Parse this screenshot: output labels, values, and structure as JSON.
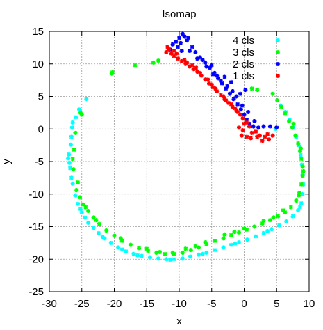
{
  "chart_data": {
    "type": "scatter",
    "title": "Isomap",
    "xlabel": "x",
    "ylabel": "y",
    "xlim": [
      -30,
      10
    ],
    "ylim": [
      -25,
      15
    ],
    "xticks": [
      -30,
      -25,
      -20,
      -15,
      -10,
      -5,
      0,
      5,
      10
    ],
    "yticks": [
      -25,
      -20,
      -15,
      -10,
      -5,
      0,
      5,
      10,
      15
    ],
    "grid": true,
    "legend_position": "top-right",
    "series": [
      {
        "name": "4 cls",
        "color": "#00ffff",
        "points": [
          [
            -24.3,
            4.6
          ],
          [
            -25.4,
            3.0
          ],
          [
            -26.4,
            1.0
          ],
          [
            -26.5,
            0.2
          ],
          [
            -26.6,
            -1.2
          ],
          [
            -26.7,
            -2.4
          ],
          [
            -27.0,
            -3.9
          ],
          [
            -27.1,
            -4.5
          ],
          [
            -26.8,
            -6.0
          ],
          [
            -26.6,
            -7.5
          ],
          [
            -26.4,
            -8.4
          ],
          [
            -26.0,
            -10.2
          ],
          [
            -25.6,
            -11.5
          ],
          [
            -25.0,
            -12.8
          ],
          [
            -24.5,
            -13.6
          ],
          [
            -24.0,
            -14.4
          ],
          [
            -23.2,
            -15.2
          ],
          [
            -22.4,
            -16.0
          ],
          [
            -21.5,
            -16.8
          ],
          [
            -20.5,
            -17.5
          ],
          [
            -19.4,
            -18.2
          ],
          [
            -18.2,
            -18.8
          ],
          [
            -17.0,
            -19.2
          ],
          [
            -15.8,
            -19.5
          ],
          [
            -14.5,
            -19.7
          ],
          [
            -13.2,
            -19.9
          ],
          [
            -12.0,
            -20.0
          ],
          [
            -10.8,
            -20.0
          ],
          [
            -9.5,
            -19.9
          ],
          [
            -8.3,
            -19.6
          ],
          [
            -7.0,
            -19.3
          ],
          [
            -5.8,
            -19.0
          ],
          [
            -4.5,
            -18.6
          ],
          [
            -3.2,
            -18.2
          ],
          [
            -2.0,
            -17.8
          ],
          [
            -0.8,
            -17.4
          ],
          [
            0.5,
            -17.0
          ],
          [
            1.8,
            -16.5
          ],
          [
            3.0,
            -16.0
          ],
          [
            4.2,
            -15.4
          ],
          [
            5.4,
            -14.8
          ],
          [
            6.5,
            -14.2
          ],
          [
            7.5,
            -13.4
          ],
          [
            8.3,
            -12.5
          ],
          [
            8.8,
            -11.4
          ],
          [
            9.0,
            -10.0
          ],
          [
            9.1,
            -8.5
          ],
          [
            9.0,
            -7.0
          ],
          [
            8.9,
            -5.5
          ],
          [
            8.7,
            -4.0
          ],
          [
            8.4,
            -2.5
          ],
          [
            8.0,
            -1.2
          ],
          [
            7.5,
            0.2
          ],
          [
            7.0,
            1.4
          ],
          [
            6.4,
            2.6
          ],
          [
            5.6,
            3.6
          ],
          [
            -21.8,
            -16.6
          ],
          [
            -18.8,
            -18.5
          ],
          [
            -16.4,
            -19.4
          ],
          [
            -11.4,
            -20.1
          ],
          [
            -6.4,
            -19.2
          ],
          [
            -1.4,
            -17.6
          ],
          [
            3.6,
            -15.7
          ],
          [
            8.6,
            -12.0
          ],
          [
            -25.2,
            -12.3
          ],
          [
            -26.9,
            -5.2
          ],
          [
            -25.9,
            1.8
          ],
          [
            4.8,
            0.0
          ]
        ]
      },
      {
        "name": "3 cls",
        "color": "#00ff00",
        "points": [
          [
            -20.3,
            8.7
          ],
          [
            -20.4,
            8.5
          ],
          [
            -16.8,
            9.8
          ],
          [
            -14.0,
            10.2
          ],
          [
            -13.2,
            10.5
          ],
          [
            -25.0,
            2.2
          ],
          [
            -25.2,
            2.5
          ],
          [
            -26.0,
            -0.6
          ],
          [
            -26.2,
            -3.2
          ],
          [
            -26.3,
            -6.2
          ],
          [
            -25.8,
            -9.4
          ],
          [
            -25.3,
            -10.5
          ],
          [
            -24.8,
            -11.6
          ],
          [
            -24.0,
            -12.6
          ],
          [
            -23.2,
            -13.6
          ],
          [
            -22.3,
            -14.6
          ],
          [
            -21.2,
            -15.6
          ],
          [
            -20.0,
            -16.4
          ],
          [
            -18.8,
            -17.2
          ],
          [
            -17.5,
            -17.8
          ],
          [
            -16.2,
            -18.3
          ],
          [
            -14.8,
            -18.7
          ],
          [
            -13.5,
            -19.0
          ],
          [
            -12.2,
            -19.2
          ],
          [
            -10.8,
            -19.2
          ],
          [
            -9.5,
            -19.0
          ],
          [
            -8.2,
            -18.6
          ],
          [
            -7.0,
            -18.2
          ],
          [
            -5.8,
            -17.7
          ],
          [
            -4.5,
            -17.2
          ],
          [
            -3.2,
            -16.8
          ],
          [
            -2.0,
            -16.3
          ],
          [
            -0.8,
            -15.9
          ],
          [
            0.4,
            -15.5
          ],
          [
            1.6,
            -15.0
          ],
          [
            2.8,
            -14.5
          ],
          [
            4.0,
            -14.0
          ],
          [
            5.2,
            -13.4
          ],
          [
            6.3,
            -12.8
          ],
          [
            7.2,
            -12.0
          ],
          [
            8.0,
            -11.0
          ],
          [
            8.5,
            -9.8
          ],
          [
            8.8,
            -8.5
          ],
          [
            9.0,
            -7.2
          ],
          [
            9.0,
            -5.8
          ],
          [
            8.8,
            -4.6
          ],
          [
            8.6,
            -3.4
          ],
          [
            8.3,
            -2.2
          ],
          [
            7.9,
            -1.0
          ],
          [
            7.4,
            0.2
          ],
          [
            6.9,
            1.2
          ],
          [
            6.3,
            2.4
          ],
          [
            5.7,
            3.4
          ],
          [
            5.1,
            4.4
          ],
          [
            4.4,
            5.4
          ],
          [
            -11.0,
            -19.0
          ],
          [
            -9.0,
            -18.4
          ],
          [
            -6.0,
            -17.4
          ],
          [
            -3.0,
            -16.2
          ],
          [
            0.0,
            -15.3
          ],
          [
            3.0,
            -14.1
          ],
          [
            6.0,
            -12.5
          ],
          [
            8.4,
            -10.2
          ],
          [
            9.1,
            -6.5
          ],
          [
            8.7,
            -3.0
          ],
          [
            7.6,
            0.8
          ],
          [
            1.2,
            6.2
          ],
          [
            2.0,
            6.0
          ],
          [
            -22.8,
            -14.0
          ],
          [
            -19.0,
            -16.8
          ],
          [
            -15.0,
            -18.4
          ],
          [
            -13.0,
            -18.9
          ],
          [
            -7.5,
            -18.0
          ],
          [
            -1.5,
            -15.8
          ],
          [
            4.5,
            -13.6
          ],
          [
            -26.4,
            -4.6
          ],
          [
            -25.6,
            -8.2
          ],
          [
            -24.4,
            -12.0
          ]
        ]
      },
      {
        "name": "2 cls",
        "color": "#0000ff",
        "points": [
          [
            -9.5,
            14.6
          ],
          [
            -9.2,
            14.2
          ],
          [
            -10.0,
            14.0
          ],
          [
            -10.5,
            13.4
          ],
          [
            -11.0,
            13.0
          ],
          [
            -8.8,
            13.6
          ],
          [
            -8.0,
            12.6
          ],
          [
            -7.5,
            11.8
          ],
          [
            -6.8,
            11.0
          ],
          [
            -6.0,
            10.2
          ],
          [
            -5.3,
            9.4
          ],
          [
            -4.6,
            8.6
          ],
          [
            -4.0,
            7.8
          ],
          [
            -3.4,
            7.0
          ],
          [
            -2.8,
            6.2
          ],
          [
            -2.2,
            5.4
          ],
          [
            -1.6,
            4.6
          ],
          [
            -1.0,
            3.8
          ],
          [
            -0.5,
            3.0
          ],
          [
            0.0,
            2.2
          ],
          [
            0.4,
            1.4
          ],
          [
            0.8,
            0.8
          ],
          [
            1.4,
            0.4
          ],
          [
            2.2,
            0.2
          ],
          [
            3.0,
            0.4
          ],
          [
            4.0,
            0.4
          ],
          [
            5.0,
            0.2
          ],
          [
            -10.2,
            12.6
          ],
          [
            -9.6,
            12.0
          ],
          [
            -8.4,
            12.0
          ],
          [
            -7.2,
            10.8
          ],
          [
            -5.8,
            9.6
          ],
          [
            -4.8,
            8.4
          ],
          [
            -3.6,
            7.4
          ],
          [
            -2.6,
            6.6
          ],
          [
            -1.2,
            5.0
          ],
          [
            -0.3,
            3.6
          ],
          [
            -3.0,
            8.0
          ],
          [
            -2.0,
            7.2
          ],
          [
            0.2,
            6.0
          ],
          [
            -0.6,
            5.4
          ],
          [
            -9.8,
            13.2
          ],
          [
            -11.4,
            12.2
          ],
          [
            -8.6,
            14.0
          ],
          [
            -6.4,
            10.6
          ],
          [
            -5.0,
            9.8
          ],
          [
            -4.2,
            8.2
          ],
          [
            -1.8,
            5.8
          ],
          [
            0.6,
            2.6
          ],
          [
            1.6,
            1.2
          ]
        ]
      },
      {
        "name": "1 cls",
        "color": "#ff0000",
        "points": [
          [
            -11.8,
            12.6
          ],
          [
            -11.6,
            12.2
          ],
          [
            -11.2,
            11.6
          ],
          [
            -10.8,
            11.2
          ],
          [
            -10.2,
            10.8
          ],
          [
            -9.6,
            10.4
          ],
          [
            -9.0,
            10.0
          ],
          [
            -8.4,
            9.6
          ],
          [
            -7.8,
            9.2
          ],
          [
            -7.2,
            8.8
          ],
          [
            -6.6,
            8.2
          ],
          [
            -6.0,
            7.6
          ],
          [
            -5.4,
            7.0
          ],
          [
            -4.8,
            6.4
          ],
          [
            -4.2,
            5.8
          ],
          [
            -3.6,
            5.2
          ],
          [
            -3.0,
            4.6
          ],
          [
            -2.4,
            4.0
          ],
          [
            -1.8,
            3.4
          ],
          [
            -1.2,
            2.8
          ],
          [
            -0.6,
            2.2
          ],
          [
            -0.2,
            1.6
          ],
          [
            0.4,
            1.0
          ],
          [
            0.8,
            0.4
          ],
          [
            -0.2,
            -0.2
          ],
          [
            -0.4,
            -1.0
          ],
          [
            0.4,
            -1.2
          ],
          [
            1.2,
            -0.6
          ],
          [
            1.8,
            -0.4
          ],
          [
            2.4,
            -1.0
          ],
          [
            3.2,
            -1.2
          ],
          [
            3.8,
            -1.6
          ],
          [
            4.4,
            -1.0
          ],
          [
            2.8,
            -1.8
          ],
          [
            -10.8,
            12.0
          ],
          [
            -9.2,
            10.6
          ],
          [
            -8.0,
            9.8
          ],
          [
            -6.8,
            8.6
          ],
          [
            -5.6,
            7.6
          ],
          [
            -4.4,
            6.2
          ],
          [
            -3.2,
            5.0
          ],
          [
            -2.0,
            3.8
          ],
          [
            -1.0,
            2.6
          ],
          [
            0.0,
            0.8
          ],
          [
            -12.0,
            11.8
          ],
          [
            -10.4,
            11.6
          ],
          [
            -8.8,
            10.2
          ],
          [
            -7.4,
            9.4
          ],
          [
            -5.0,
            6.8
          ],
          [
            -2.8,
            4.4
          ],
          [
            -1.4,
            3.2
          ],
          [
            1.0,
            -1.4
          ],
          [
            2.0,
            -1.2
          ],
          [
            3.6,
            -0.8
          ],
          [
            -0.8,
            0.2
          ]
        ]
      }
    ]
  }
}
